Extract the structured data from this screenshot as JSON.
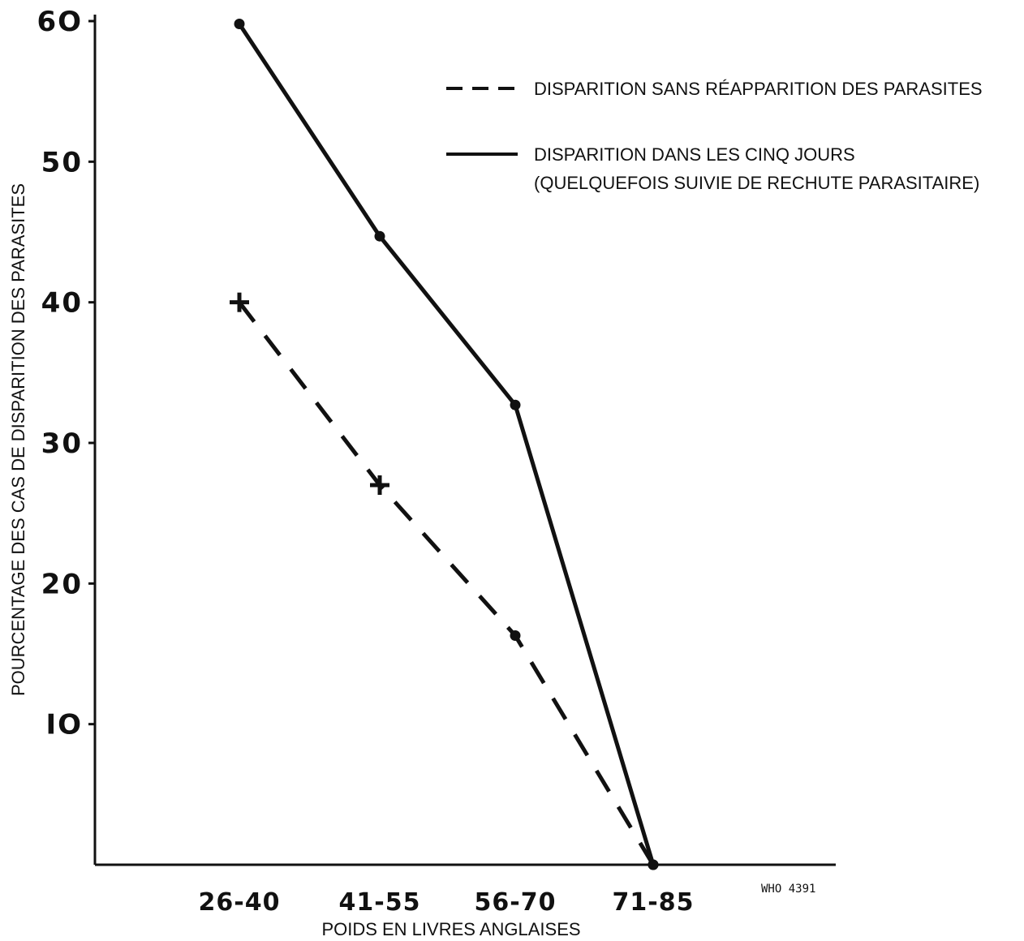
{
  "chart_data": {
    "type": "line",
    "categories": [
      "26-40",
      "41-55",
      "56-70",
      "71-85"
    ],
    "series": [
      {
        "name": "DISPARITION SANS RÉAPPARITION DES PARASITES",
        "values": [
          40,
          27,
          16.3,
          0
        ],
        "style": "dashed",
        "markers": [
          "plus",
          "plus",
          "dot",
          "dot"
        ],
        "color": "#111111"
      },
      {
        "name_lines": [
          "DISPARITION DANS LES CINQ JOURS",
          "(QUELQUEFOIS SUIVIE DE RECHUTE PARASITAIRE)"
        ],
        "values": [
          59.8,
          44.7,
          32.7,
          0
        ],
        "style": "solid",
        "markers": [
          "dot",
          "dot",
          "dot",
          "dot"
        ],
        "color": "#111111"
      }
    ],
    "ylabel": "POURCENTAGE DES CAS DE DISPARITION DES PARASITES",
    "xlabel": "POIDS EN LIVRES ANGLAISES",
    "y_ticks": [
      10,
      20,
      30,
      40,
      50,
      60
    ],
    "y_tick_labels": [
      "IO",
      "20",
      "30",
      "40",
      "50",
      "6O"
    ],
    "ylim": [
      0,
      60
    ],
    "grid": false,
    "legend_position": "top-right",
    "footnote": "WHO 4391"
  }
}
